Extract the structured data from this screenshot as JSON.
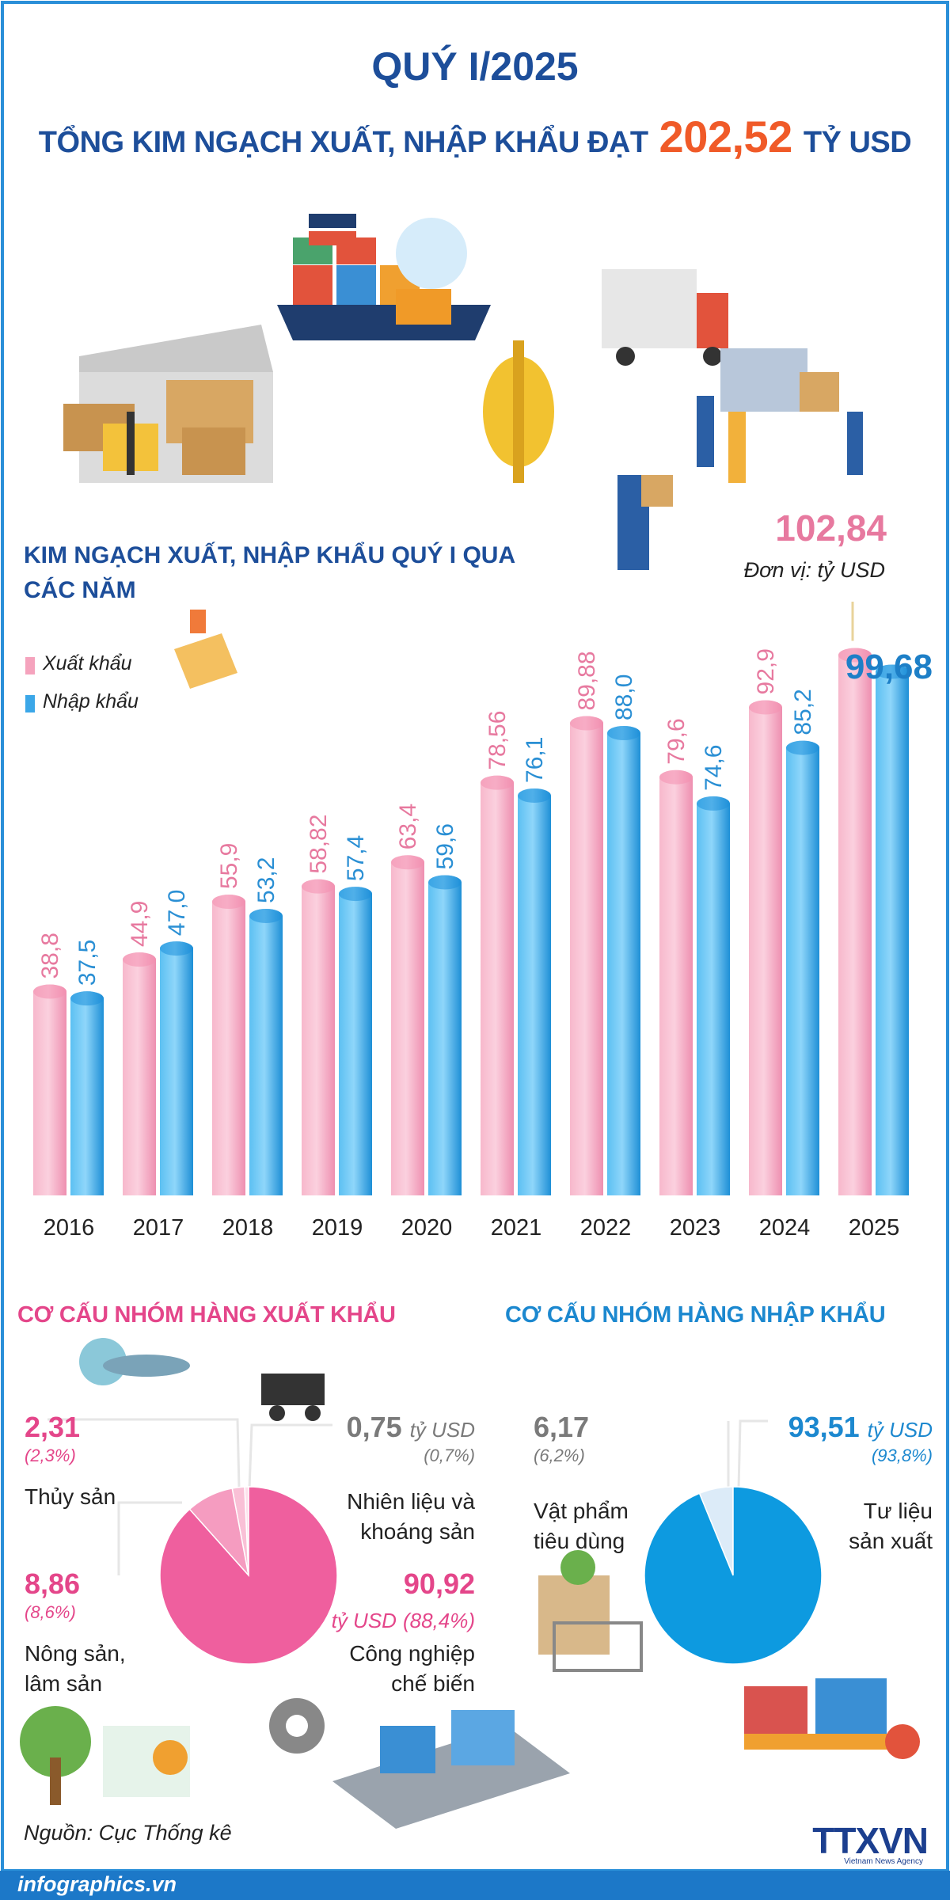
{
  "header": {
    "title_line1": "QUÝ I/2025",
    "title_line2": "TỔNG KIM NGẠCH XUẤT, NHẬP KHẨU ĐẠT",
    "total": "202,52",
    "total_unit": "TỶ USD"
  },
  "chart_data": [
    {
      "type": "bar",
      "title": "KIM NGẠCH XUẤT, NHẬP KHẨU QUÝ I QUA CÁC NĂM",
      "unit_note": "Đơn vị: tỷ USD",
      "categories": [
        "2016",
        "2017",
        "2018",
        "2019",
        "2020",
        "2021",
        "2022",
        "2023",
        "2024",
        "2025"
      ],
      "ylim": [
        0,
        110
      ],
      "series": [
        {
          "name": "Xuất khẩu",
          "color": "#f5a3bd",
          "values": [
            38.8,
            44.9,
            55.9,
            58.82,
            63.4,
            78.56,
            89.88,
            79.6,
            92.9,
            102.84
          ],
          "value_labels": [
            "38,8",
            "44,9",
            "55,9",
            "58,82",
            "63,4",
            "78,56",
            "89,88",
            "79,6",
            "92,9",
            "102,84"
          ]
        },
        {
          "name": "Nhập khẩu",
          "color": "#3ba7e8",
          "values": [
            37.5,
            47.0,
            53.2,
            57.4,
            59.6,
            76.1,
            88.0,
            74.6,
            85.2,
            99.68
          ],
          "value_labels": [
            "37,5",
            "47,0",
            "53,2",
            "57,4",
            "59,6",
            "76,1",
            "88,0",
            "74,6",
            "85,2",
            "99,68"
          ]
        }
      ]
    },
    {
      "type": "pie",
      "title": "CƠ CẤU NHÓM HÀNG XUẤT KHẨU",
      "unit": "tỷ USD",
      "categories": [
        "Nhiên liệu và khoáng sản",
        "Thủy sản",
        "Nông sản, lâm sản",
        "Công nghiệp chế biến"
      ],
      "values": [
        0.75,
        2.31,
        8.86,
        90.92
      ],
      "value_labels": [
        "0,75",
        "2,31",
        "8,86",
        "90,92"
      ],
      "percent_labels": [
        "(0,7%)",
        "(2,3%)",
        "(8,6%)",
        "(88,4%)"
      ],
      "colors": [
        "#fde0eb",
        "#f9c0d6",
        "#f59cc0",
        "#ef5f9e"
      ]
    },
    {
      "type": "pie",
      "title": "CƠ CẤU NHÓM HÀNG NHẬP KHẨU",
      "unit": "tỷ USD",
      "categories": [
        "Vật phẩm tiêu dùng",
        "Tư liệu sản xuất"
      ],
      "values": [
        6.17,
        93.51
      ],
      "value_labels": [
        "6,17",
        "93,51"
      ],
      "percent_labels": [
        "(6,2%)",
        "(93,8%)"
      ],
      "colors": [
        "#dcebf8",
        "#0d9ae0"
      ]
    }
  ],
  "footer": {
    "source": "Nguồn: Cục Thống kê",
    "site": "infographics.vn",
    "logo": "TTXVN",
    "logo_sub": "Vietnam News Agency"
  }
}
